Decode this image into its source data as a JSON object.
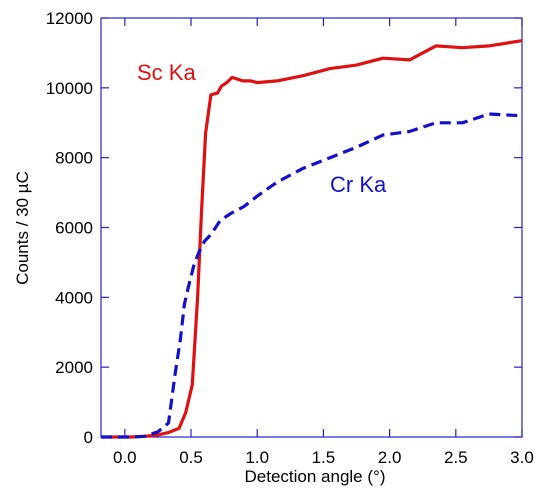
{
  "colors": {
    "axis": "#2222cc",
    "sc": "#dd1111",
    "cr": "#1111cc",
    "text": "#000000"
  },
  "chart_data": {
    "type": "line",
    "xlabel": "Detection angle (°)",
    "ylabel": "Counts / 30 µC",
    "xlim": [
      -0.18,
      3.0
    ],
    "ylim": [
      0,
      12000
    ],
    "x_ticks": [
      0.0,
      0.5,
      1.0,
      1.5,
      2.0,
      2.5,
      3.0
    ],
    "x_tick_labels": [
      "0.0",
      "0.5",
      "1.0",
      "1.5",
      "2.0",
      "2.5",
      "3.0"
    ],
    "y_ticks": [
      0,
      2000,
      4000,
      6000,
      8000,
      10000,
      12000
    ],
    "y_tick_labels": [
      "0",
      "2000",
      "4000",
      "6000",
      "8000",
      "10000",
      "12000"
    ],
    "grid": false,
    "legend": "none",
    "series": [
      {
        "name": "Sc Ka",
        "style": "solid",
        "color": "#dd1111",
        "x": [
          -0.18,
          -0.05,
          0.05,
          0.15,
          0.25,
          0.33,
          0.41,
          0.46,
          0.51,
          0.55,
          0.58,
          0.61,
          0.65,
          0.7,
          0.73,
          0.77,
          0.81,
          0.85,
          0.89,
          0.95,
          1.0,
          1.15,
          1.35,
          1.55,
          1.75,
          1.95,
          2.15,
          2.35,
          2.55,
          2.75,
          3.0
        ],
        "y": [
          0,
          0,
          0,
          20,
          60,
          130,
          250,
          700,
          1500,
          4000,
          6500,
          8700,
          9800,
          9850,
          10050,
          10150,
          10300,
          10250,
          10200,
          10200,
          10150,
          10200,
          10350,
          10550,
          10650,
          10850,
          10800,
          11200,
          11150,
          11200,
          11350
        ]
      },
      {
        "name": "Cr Ka",
        "style": "dashed",
        "color": "#1111cc",
        "x": [
          -0.18,
          -0.05,
          0.05,
          0.15,
          0.25,
          0.33,
          0.38,
          0.42,
          0.45,
          0.48,
          0.52,
          0.56,
          0.6,
          0.65,
          0.72,
          0.8,
          0.9,
          1.0,
          1.15,
          1.35,
          1.55,
          1.75,
          1.95,
          2.15,
          2.35,
          2.55,
          2.75,
          3.0
        ],
        "y": [
          0,
          0,
          0,
          20,
          150,
          400,
          1800,
          2800,
          3800,
          4300,
          4900,
          5300,
          5600,
          5800,
          6200,
          6400,
          6600,
          6900,
          7300,
          7700,
          8000,
          8300,
          8650,
          8750,
          9000,
          9000,
          9250,
          9200
        ]
      }
    ],
    "annotations": [
      "Sc Ka",
      "Cr Ka"
    ]
  }
}
